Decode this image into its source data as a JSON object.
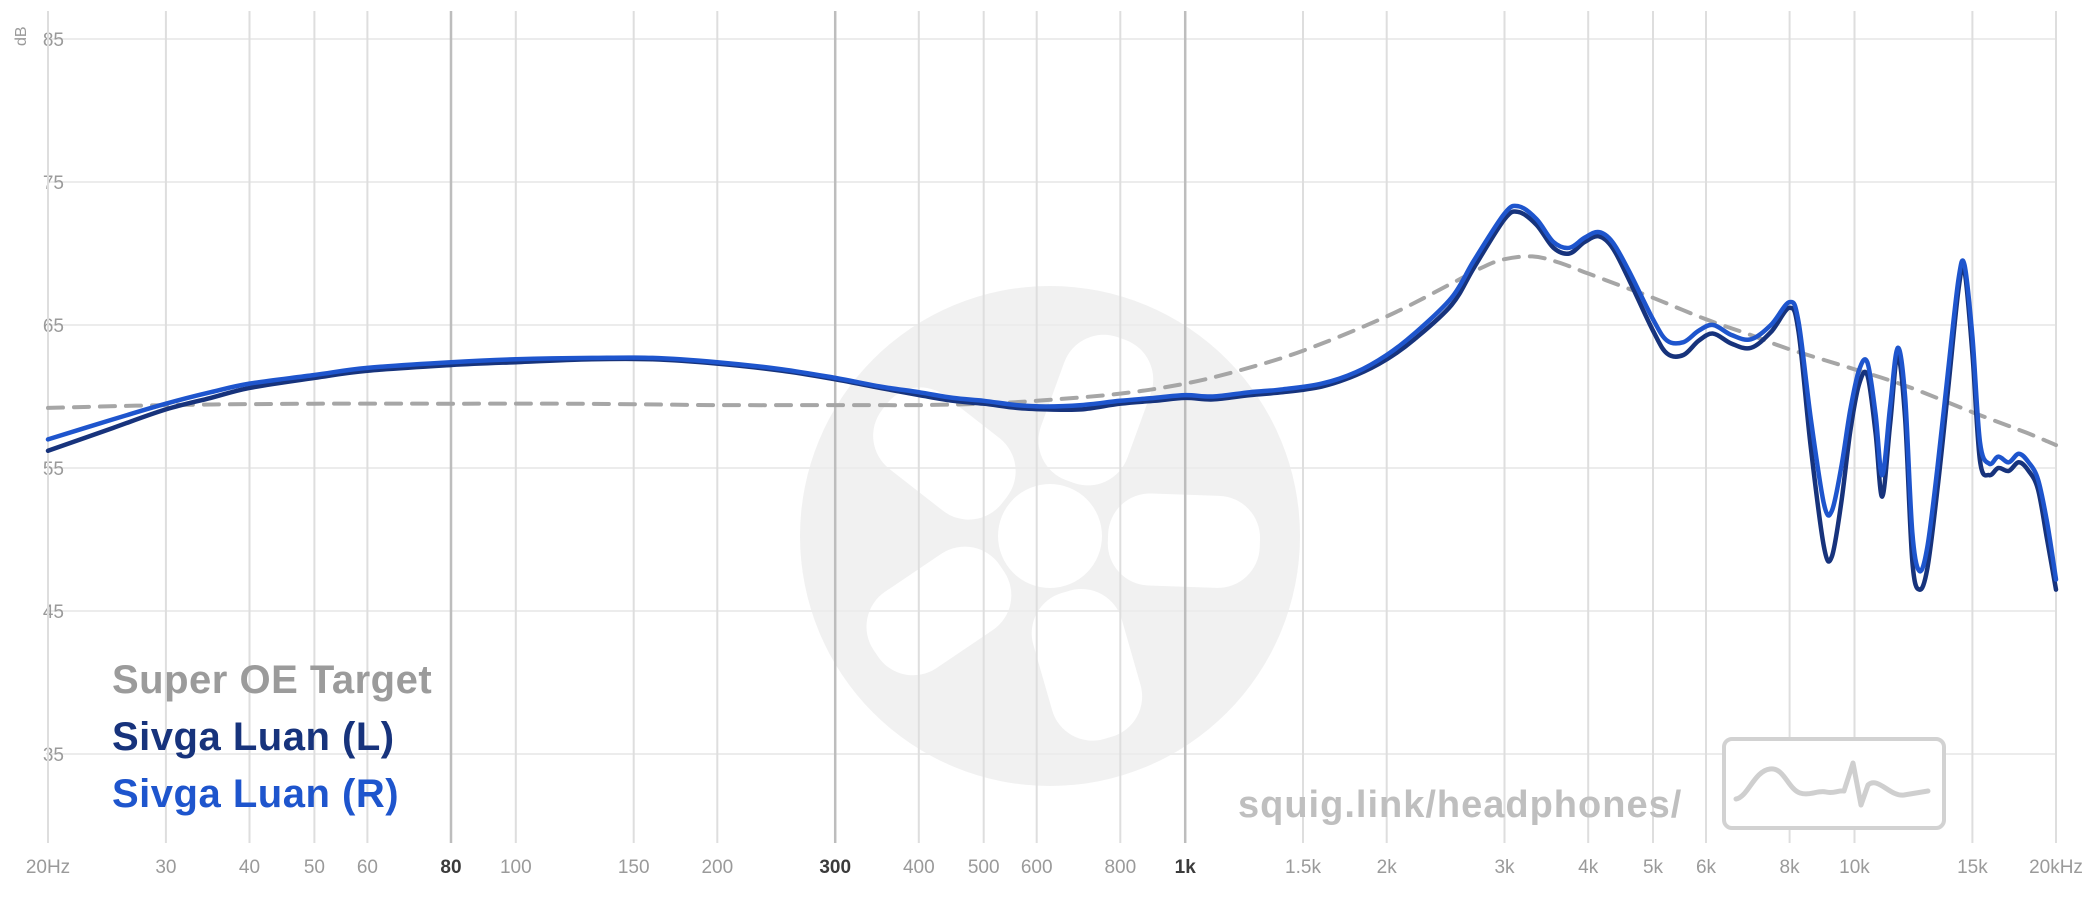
{
  "colors": {
    "background": "#ffffff",
    "grid_minor": "#dedede",
    "grid_major": "#bdbdbd",
    "grid_horizontal": "#ececec",
    "axis_label": "#9a9a9a",
    "axis_label_major": "#3b3b3b",
    "watermark": "#f1f1f1",
    "watermark_text": "#bfbfbf",
    "logo_box_border": "#d2d2d2",
    "target_color": "#a6a6a6",
    "left_channel_color": "#17337c",
    "right_channel_color": "#1e55cd"
  },
  "watermark": {
    "text": "squig.link/headphones/"
  },
  "legend": {
    "items": [
      {
        "label": "Super OE Target",
        "color": "#9b9b9b"
      },
      {
        "label": "Sivga Luan (L)",
        "color": "#17337c"
      },
      {
        "label": "Sivga Luan (R)",
        "color": "#1e55cd"
      }
    ]
  },
  "chart_data": {
    "type": "line",
    "title": "",
    "ylabel": "dB",
    "x_scale": "log",
    "xlim": [
      20,
      20000
    ],
    "ylim": [
      35,
      85
    ],
    "grid": true,
    "legend_position": "bottom-left",
    "y_ticks": [
      {
        "value": 85,
        "label": "85"
      },
      {
        "value": 75,
        "label": "75"
      },
      {
        "value": 65,
        "label": "65"
      },
      {
        "value": 55,
        "label": "55"
      },
      {
        "value": 45,
        "label": "45"
      },
      {
        "value": 35,
        "label": "35"
      }
    ],
    "x_ticks": [
      {
        "value": 20,
        "label": "20Hz",
        "major": false
      },
      {
        "value": 30,
        "label": "30",
        "major": false
      },
      {
        "value": 40,
        "label": "40",
        "major": false
      },
      {
        "value": 50,
        "label": "50",
        "major": false
      },
      {
        "value": 60,
        "label": "60",
        "major": false
      },
      {
        "value": 80,
        "label": "80",
        "major": true
      },
      {
        "value": 100,
        "label": "100",
        "major": false
      },
      {
        "value": 150,
        "label": "150",
        "major": false
      },
      {
        "value": 200,
        "label": "200",
        "major": false
      },
      {
        "value": 300,
        "label": "300",
        "major": true
      },
      {
        "value": 400,
        "label": "400",
        "major": false
      },
      {
        "value": 500,
        "label": "500",
        "major": false
      },
      {
        "value": 600,
        "label": "600",
        "major": false
      },
      {
        "value": 800,
        "label": "800",
        "major": false
      },
      {
        "value": 1000,
        "label": "1k",
        "major": true
      },
      {
        "value": 1500,
        "label": "1.5k",
        "major": false
      },
      {
        "value": 2000,
        "label": "2k",
        "major": false
      },
      {
        "value": 3000,
        "label": "3k",
        "major": false
      },
      {
        "value": 4000,
        "label": "4k",
        "major": false
      },
      {
        "value": 5000,
        "label": "5k",
        "major": false
      },
      {
        "value": 6000,
        "label": "6k",
        "major": false
      },
      {
        "value": 8000,
        "label": "8k",
        "major": false
      },
      {
        "value": 10000,
        "label": "10k",
        "major": false
      },
      {
        "value": 15000,
        "label": "15k",
        "major": false
      },
      {
        "value": 20000,
        "label": "20kHz",
        "major": false
      }
    ],
    "series": [
      {
        "name": "Super OE Target",
        "color": "#a6a6a6",
        "style": "dashed",
        "width": 4,
        "points": [
          [
            20,
            59.2
          ],
          [
            30,
            59.4
          ],
          [
            50,
            59.5
          ],
          [
            80,
            59.5
          ],
          [
            120,
            59.5
          ],
          [
            200,
            59.4
          ],
          [
            300,
            59.4
          ],
          [
            400,
            59.4
          ],
          [
            500,
            59.5
          ],
          [
            600,
            59.7
          ],
          [
            800,
            60.2
          ],
          [
            1000,
            60.9
          ],
          [
            1200,
            61.8
          ],
          [
            1500,
            63.2
          ],
          [
            2000,
            65.6
          ],
          [
            2500,
            67.9
          ],
          [
            2800,
            69.1
          ],
          [
            3000,
            69.6
          ],
          [
            3300,
            69.8
          ],
          [
            3600,
            69.4
          ],
          [
            4000,
            68.6
          ],
          [
            4500,
            67.7
          ],
          [
            5000,
            66.9
          ],
          [
            6000,
            65.4
          ],
          [
            7000,
            64.3
          ],
          [
            8000,
            63.3
          ],
          [
            10000,
            61.9
          ],
          [
            12000,
            60.7
          ],
          [
            15000,
            58.9
          ],
          [
            18000,
            57.5
          ],
          [
            20000,
            56.6
          ]
        ]
      },
      {
        "name": "Sivga Luan (L)",
        "color": "#17337c",
        "style": "solid",
        "width": 4.5,
        "points": [
          [
            20,
            56.2
          ],
          [
            25,
            57.8
          ],
          [
            30,
            59.1
          ],
          [
            35,
            59.9
          ],
          [
            40,
            60.6
          ],
          [
            50,
            61.3
          ],
          [
            60,
            61.8
          ],
          [
            80,
            62.2
          ],
          [
            100,
            62.4
          ],
          [
            130,
            62.6
          ],
          [
            160,
            62.6
          ],
          [
            200,
            62.3
          ],
          [
            250,
            61.8
          ],
          [
            300,
            61.2
          ],
          [
            350,
            60.6
          ],
          [
            400,
            60.1
          ],
          [
            450,
            59.7
          ],
          [
            500,
            59.5
          ],
          [
            560,
            59.2
          ],
          [
            620,
            59.1
          ],
          [
            700,
            59.1
          ],
          [
            800,
            59.5
          ],
          [
            900,
            59.7
          ],
          [
            1000,
            59.9
          ],
          [
            1100,
            59.8
          ],
          [
            1250,
            60.1
          ],
          [
            1400,
            60.3
          ],
          [
            1600,
            60.7
          ],
          [
            1800,
            61.5
          ],
          [
            2000,
            62.6
          ],
          [
            2200,
            64.0
          ],
          [
            2500,
            66.4
          ],
          [
            2700,
            69.0
          ],
          [
            3000,
            72.4
          ],
          [
            3150,
            72.9
          ],
          [
            3350,
            72.0
          ],
          [
            3550,
            70.4
          ],
          [
            3750,
            70.0
          ],
          [
            3950,
            70.8
          ],
          [
            4150,
            71.2
          ],
          [
            4350,
            70.4
          ],
          [
            4600,
            68.2
          ],
          [
            5000,
            64.6
          ],
          [
            5250,
            63.0
          ],
          [
            5550,
            62.9
          ],
          [
            5850,
            63.9
          ],
          [
            6150,
            64.4
          ],
          [
            6550,
            63.7
          ],
          [
            7000,
            63.4
          ],
          [
            7500,
            64.5
          ],
          [
            8000,
            66.2
          ],
          [
            8250,
            64.5
          ],
          [
            8600,
            56.5
          ],
          [
            9000,
            49.5
          ],
          [
            9250,
            48.8
          ],
          [
            9550,
            52.5
          ],
          [
            9850,
            57.5
          ],
          [
            10150,
            60.8
          ],
          [
            10450,
            61.5
          ],
          [
            10750,
            57.5
          ],
          [
            11000,
            53.0
          ],
          [
            11300,
            58.0
          ],
          [
            11600,
            62.8
          ],
          [
            11900,
            58.5
          ],
          [
            12200,
            48.5
          ],
          [
            12500,
            46.5
          ],
          [
            12850,
            48.0
          ],
          [
            13300,
            53.5
          ],
          [
            13800,
            60.5
          ],
          [
            14300,
            67.5
          ],
          [
            14600,
            68.8
          ],
          [
            15000,
            63.0
          ],
          [
            15400,
            55.5
          ],
          [
            15900,
            54.5
          ],
          [
            16400,
            55.0
          ],
          [
            17000,
            54.8
          ],
          [
            17600,
            55.4
          ],
          [
            18200,
            54.8
          ],
          [
            18800,
            53.5
          ],
          [
            19400,
            50.0
          ],
          [
            20000,
            46.5
          ]
        ]
      },
      {
        "name": "Sivga Luan (R)",
        "color": "#1e55cd",
        "style": "solid",
        "width": 4.5,
        "points": [
          [
            20,
            57.0
          ],
          [
            25,
            58.4
          ],
          [
            30,
            59.5
          ],
          [
            35,
            60.3
          ],
          [
            40,
            60.9
          ],
          [
            50,
            61.5
          ],
          [
            60,
            62.0
          ],
          [
            80,
            62.4
          ],
          [
            100,
            62.6
          ],
          [
            130,
            62.7
          ],
          [
            160,
            62.7
          ],
          [
            200,
            62.4
          ],
          [
            250,
            61.9
          ],
          [
            300,
            61.3
          ],
          [
            350,
            60.7
          ],
          [
            400,
            60.3
          ],
          [
            450,
            59.9
          ],
          [
            500,
            59.7
          ],
          [
            560,
            59.4
          ],
          [
            620,
            59.3
          ],
          [
            700,
            59.4
          ],
          [
            800,
            59.7
          ],
          [
            900,
            59.9
          ],
          [
            1000,
            60.1
          ],
          [
            1100,
            60.0
          ],
          [
            1250,
            60.3
          ],
          [
            1400,
            60.5
          ],
          [
            1600,
            60.9
          ],
          [
            1800,
            61.7
          ],
          [
            2000,
            62.9
          ],
          [
            2200,
            64.4
          ],
          [
            2500,
            66.9
          ],
          [
            2700,
            69.5
          ],
          [
            3000,
            72.8
          ],
          [
            3150,
            73.3
          ],
          [
            3350,
            72.4
          ],
          [
            3550,
            70.8
          ],
          [
            3750,
            70.4
          ],
          [
            3950,
            71.1
          ],
          [
            4150,
            71.5
          ],
          [
            4350,
            70.8
          ],
          [
            4600,
            68.8
          ],
          [
            5000,
            65.4
          ],
          [
            5250,
            63.9
          ],
          [
            5550,
            63.8
          ],
          [
            5850,
            64.6
          ],
          [
            6150,
            65.0
          ],
          [
            6550,
            64.3
          ],
          [
            7000,
            64.0
          ],
          [
            7500,
            65.0
          ],
          [
            8000,
            66.6
          ],
          [
            8250,
            65.2
          ],
          [
            8600,
            58.5
          ],
          [
            9000,
            52.5
          ],
          [
            9250,
            52.0
          ],
          [
            9550,
            55.0
          ],
          [
            9850,
            59.0
          ],
          [
            10150,
            61.8
          ],
          [
            10450,
            62.4
          ],
          [
            10750,
            58.8
          ],
          [
            11000,
            54.5
          ],
          [
            11300,
            59.2
          ],
          [
            11600,
            63.4
          ],
          [
            11900,
            60.0
          ],
          [
            12200,
            50.5
          ],
          [
            12500,
            47.8
          ],
          [
            12850,
            49.5
          ],
          [
            13300,
            55.0
          ],
          [
            13800,
            61.8
          ],
          [
            14300,
            68.2
          ],
          [
            14600,
            69.2
          ],
          [
            15000,
            64.2
          ],
          [
            15400,
            56.8
          ],
          [
            15900,
            55.3
          ],
          [
            16400,
            55.8
          ],
          [
            17000,
            55.4
          ],
          [
            17600,
            56.0
          ],
          [
            18200,
            55.4
          ],
          [
            18800,
            54.2
          ],
          [
            19400,
            51.2
          ],
          [
            20000,
            47.2
          ]
        ]
      }
    ]
  }
}
